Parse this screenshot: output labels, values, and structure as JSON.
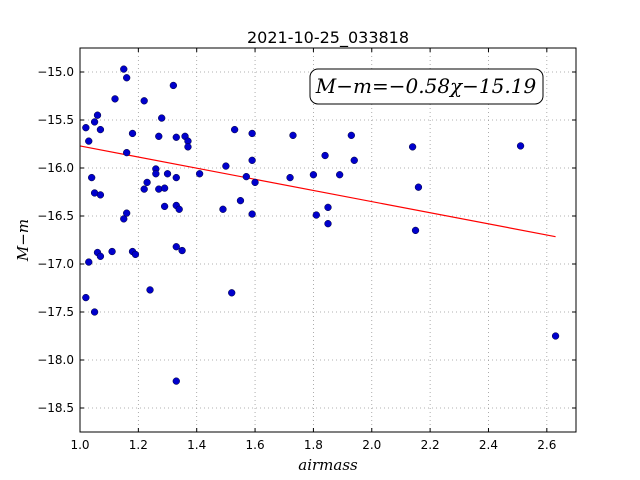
{
  "chart_data": {
    "type": "scatter",
    "title": "2021-10-25_033818",
    "xlabel": "airmass",
    "ylabel": "M−m",
    "xlim": [
      1.0,
      2.7
    ],
    "ylim": [
      -18.75,
      -14.75
    ],
    "y_inverted": true,
    "grid": true,
    "x_ticks": [
      "1.0",
      "1.2",
      "1.4",
      "1.6",
      "1.8",
      "2.0",
      "2.2",
      "2.4",
      "2.6"
    ],
    "y_ticks": [
      "−15.0",
      "−15.5",
      "−16.0",
      "−16.5",
      "−17.0",
      "−17.5",
      "−18.0",
      "−18.5"
    ],
    "annotation": "M−m=−0.58χ−15.19",
    "colors": {
      "points": "#0000cc",
      "fit_line": "#ff0000",
      "grid": "#999999"
    },
    "fit": {
      "slope": -0.58,
      "intercept": -15.19,
      "x_range": [
        1.0,
        2.63
      ]
    },
    "points": [
      [
        1.02,
        -15.58
      ],
      [
        1.03,
        -15.72
      ],
      [
        1.04,
        -16.1
      ],
      [
        1.05,
        -16.26
      ],
      [
        1.05,
        -15.52
      ],
      [
        1.06,
        -15.45
      ],
      [
        1.07,
        -15.6
      ],
      [
        1.07,
        -16.28
      ],
      [
        1.06,
        -16.88
      ],
      [
        1.07,
        -16.92
      ],
      [
        1.03,
        -16.98
      ],
      [
        1.02,
        -17.35
      ],
      [
        1.05,
        -17.5
      ],
      [
        1.11,
        -16.87
      ],
      [
        1.12,
        -15.28
      ],
      [
        1.15,
        -14.97
      ],
      [
        1.16,
        -15.06
      ],
      [
        1.16,
        -15.84
      ],
      [
        1.18,
        -15.64
      ],
      [
        1.15,
        -16.53
      ],
      [
        1.16,
        -16.47
      ],
      [
        1.18,
        -16.87
      ],
      [
        1.19,
        -16.9
      ],
      [
        1.22,
        -15.3
      ],
      [
        1.22,
        -16.22
      ],
      [
        1.23,
        -16.15
      ],
      [
        1.24,
        -17.27
      ],
      [
        1.26,
        -16.01
      ],
      [
        1.26,
        -16.06
      ],
      [
        1.27,
        -15.67
      ],
      [
        1.27,
        -16.22
      ],
      [
        1.29,
        -16.21
      ],
      [
        1.28,
        -15.48
      ],
      [
        1.29,
        -16.4
      ],
      [
        1.3,
        -16.06
      ],
      [
        1.32,
        -15.14
      ],
      [
        1.33,
        -16.1
      ],
      [
        1.33,
        -15.68
      ],
      [
        1.33,
        -16.39
      ],
      [
        1.34,
        -16.43
      ],
      [
        1.33,
        -16.82
      ],
      [
        1.35,
        -16.86
      ],
      [
        1.36,
        -15.67
      ],
      [
        1.37,
        -15.72
      ],
      [
        1.37,
        -15.78
      ],
      [
        1.33,
        -18.22
      ],
      [
        1.41,
        -16.06
      ],
      [
        1.49,
        -16.43
      ],
      [
        1.5,
        -15.98
      ],
      [
        1.52,
        -17.3
      ],
      [
        1.53,
        -15.6
      ],
      [
        1.55,
        -16.34
      ],
      [
        1.57,
        -16.09
      ],
      [
        1.59,
        -15.92
      ],
      [
        1.59,
        -15.64
      ],
      [
        1.59,
        -16.48
      ],
      [
        1.6,
        -16.15
      ],
      [
        1.72,
        -16.1
      ],
      [
        1.73,
        -15.66
      ],
      [
        1.8,
        -16.07
      ],
      [
        1.81,
        -16.49
      ],
      [
        1.84,
        -15.87
      ],
      [
        1.85,
        -16.58
      ],
      [
        1.85,
        -16.41
      ],
      [
        1.89,
        -16.07
      ],
      [
        1.93,
        -15.66
      ],
      [
        1.94,
        -15.92
      ],
      [
        2.14,
        -15.78
      ],
      [
        2.15,
        -16.65
      ],
      [
        2.16,
        -16.2
      ],
      [
        2.51,
        -15.77
      ],
      [
        2.63,
        -17.75
      ]
    ]
  }
}
